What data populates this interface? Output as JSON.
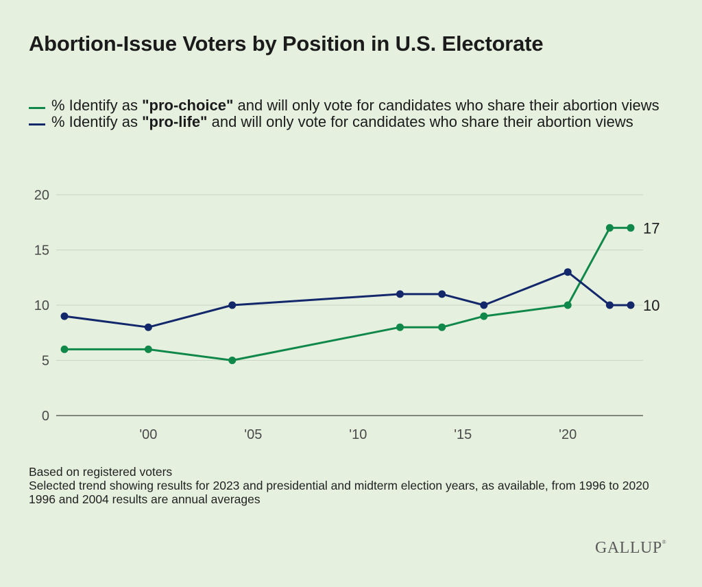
{
  "header": {
    "title": "Abortion-Issue Voters by Position in U.S. Electorate"
  },
  "legend": [
    {
      "prefix": "% Identify as ",
      "bold": "\"pro-choice\"",
      "suffix": " and will only vote for candidates who share their abortion views",
      "color": "#10884a"
    },
    {
      "prefix": "% Identify as ",
      "bold": "\"pro-life\"",
      "suffix": " and will only vote for candidates who share their abortion views",
      "color": "#13276b"
    }
  ],
  "chart_data": {
    "type": "line",
    "ylim": [
      0,
      20
    ],
    "yticks": [
      0,
      5,
      10,
      15,
      20
    ],
    "xlim": [
      1996,
      2023
    ],
    "xticks": [
      {
        "value": 2000,
        "label": "'00"
      },
      {
        "value": 2005,
        "label": "'05"
      },
      {
        "value": 2010,
        "label": "'10"
      },
      {
        "value": 2015,
        "label": "'15"
      },
      {
        "value": 2020,
        "label": "'20"
      }
    ],
    "grid": true,
    "series": [
      {
        "name": "% Identify as \"pro-choice\" and will only vote for candidates who share their abortion views",
        "color": "#10884a",
        "x": [
          1996,
          2000,
          2004,
          2012,
          2014,
          2016,
          2020,
          2022,
          2023
        ],
        "y": [
          6,
          6,
          5,
          8,
          8,
          9,
          10,
          17,
          17
        ],
        "end_label": "17"
      },
      {
        "name": "% Identify as \"pro-life\" and will only vote for candidates who share their abortion views",
        "color": "#13276b",
        "x": [
          1996,
          2000,
          2004,
          2012,
          2014,
          2016,
          2020,
          2022,
          2023
        ],
        "y": [
          9,
          8,
          10,
          11,
          11,
          10,
          13,
          10,
          10
        ],
        "end_label": "10"
      }
    ]
  },
  "notes": [
    "Based on registered voters",
    "Selected trend showing results for 2023 and presidential and midterm election years, as available, from 1996 to 2020",
    "1996 and 2004 results are annual averages"
  ],
  "brand": {
    "logo": "GALLUP"
  }
}
